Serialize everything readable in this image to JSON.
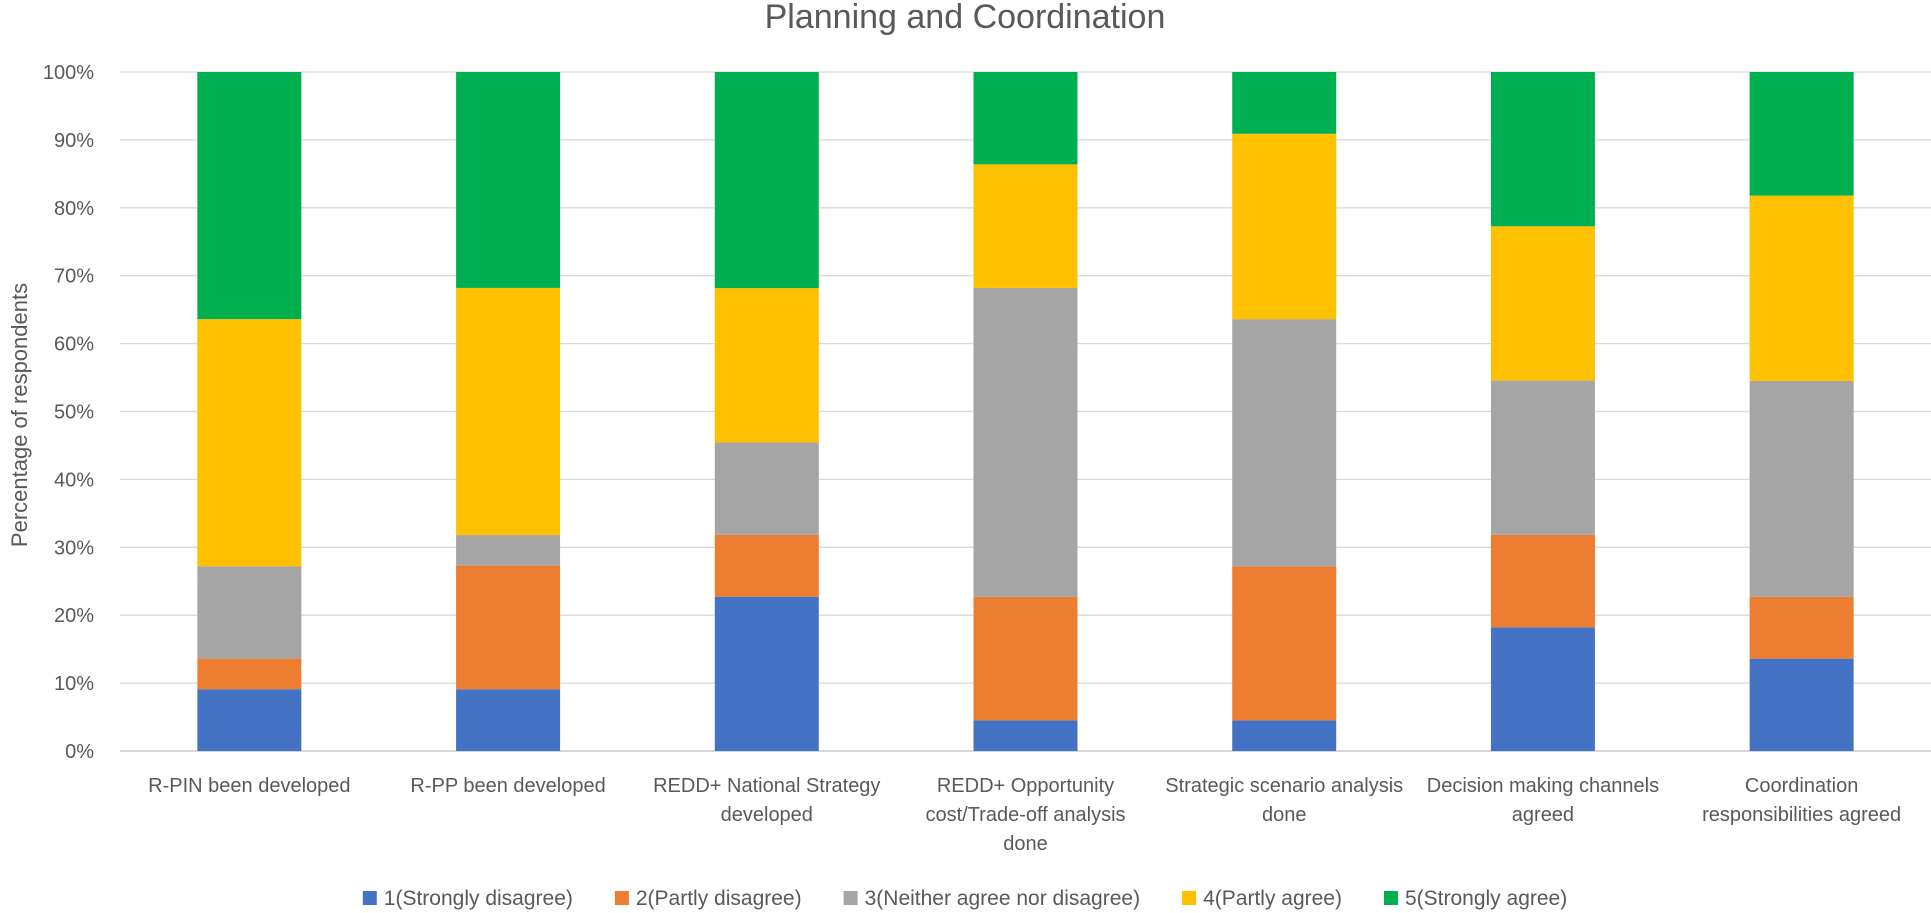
{
  "chart_data": {
    "type": "bar",
    "stacked": true,
    "percent_stacked": true,
    "title": "Planning and Coordination",
    "xlabel": "",
    "ylabel": "Percentage of respondents",
    "ylim": [
      0,
      100
    ],
    "yticks": [
      "0%",
      "10%",
      "20%",
      "30%",
      "40%",
      "50%",
      "60%",
      "70%",
      "80%",
      "90%",
      "100%"
    ],
    "grid": true,
    "legend_position": "bottom",
    "categories": [
      [
        "R-PIN been developed"
      ],
      [
        "R-PP been developed"
      ],
      [
        "REDD+ National Strategy",
        "developed"
      ],
      [
        "REDD+ Opportunity",
        "cost/Trade-off analysis",
        "done"
      ],
      [
        "Strategic scenario analysis",
        "done"
      ],
      [
        "Decision making channels",
        "agreed"
      ],
      [
        "Coordination",
        "responsibilities agreed"
      ]
    ],
    "series": [
      {
        "name": "1(Strongly disagree)",
        "color": "#4472C4",
        "values": [
          9.1,
          9.1,
          22.7,
          4.5,
          4.5,
          18.2,
          13.6
        ]
      },
      {
        "name": "2(Partly disagree)",
        "color": "#ED7D31",
        "values": [
          4.5,
          18.2,
          9.1,
          18.2,
          22.7,
          13.6,
          9.1
        ]
      },
      {
        "name": "3(Neither agree nor disagree)",
        "color": "#A5A5A5",
        "values": [
          13.6,
          4.5,
          13.6,
          45.5,
          36.4,
          22.7,
          31.8
        ]
      },
      {
        "name": "4(Partly agree)",
        "color": "#FFC000",
        "values": [
          36.4,
          36.4,
          22.7,
          18.2,
          27.3,
          22.7,
          27.3
        ]
      },
      {
        "name": "5(Strongly agree)",
        "color": "#00B050",
        "values": [
          36.4,
          31.8,
          31.8,
          13.6,
          9.1,
          22.7,
          18.2
        ]
      }
    ]
  }
}
